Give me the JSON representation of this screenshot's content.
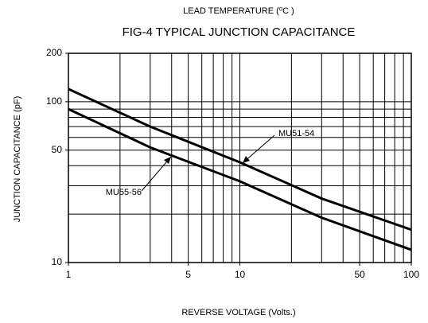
{
  "chart_data": {
    "type": "line",
    "title": "FIG-4 TYPICAL JUNCTION CAPACITANCE",
    "subtitle": "LEAD TEMPERATURE (⁰C )",
    "x_label": "REVERSE VOLTAGE (Volts.)",
    "y_label": "JUNCTION CAPACITANCE (pF)",
    "x": [
      1,
      3,
      10,
      30,
      100
    ],
    "series": [
      {
        "name": "MU51-54",
        "color": "#000000",
        "values": [
          120,
          70,
          42,
          25,
          16
        ]
      },
      {
        "name": "MU55-56",
        "color": "#000000",
        "values": [
          90,
          52,
          32,
          19,
          12
        ]
      }
    ],
    "xlim": [
      1,
      100
    ],
    "ylim": [
      10,
      200
    ],
    "xticks": [
      1,
      5,
      10,
      50,
      100
    ],
    "yticks": [
      10,
      50,
      100,
      200
    ],
    "xgrid": [
      2,
      3,
      4,
      5,
      6,
      7,
      8,
      9,
      10,
      20,
      30,
      40,
      50,
      60,
      70,
      80,
      90
    ],
    "ygrid": [
      20,
      30,
      40,
      50,
      60,
      70,
      80,
      90,
      100
    ],
    "xscale": "log",
    "yscale": "log",
    "grid": true
  }
}
